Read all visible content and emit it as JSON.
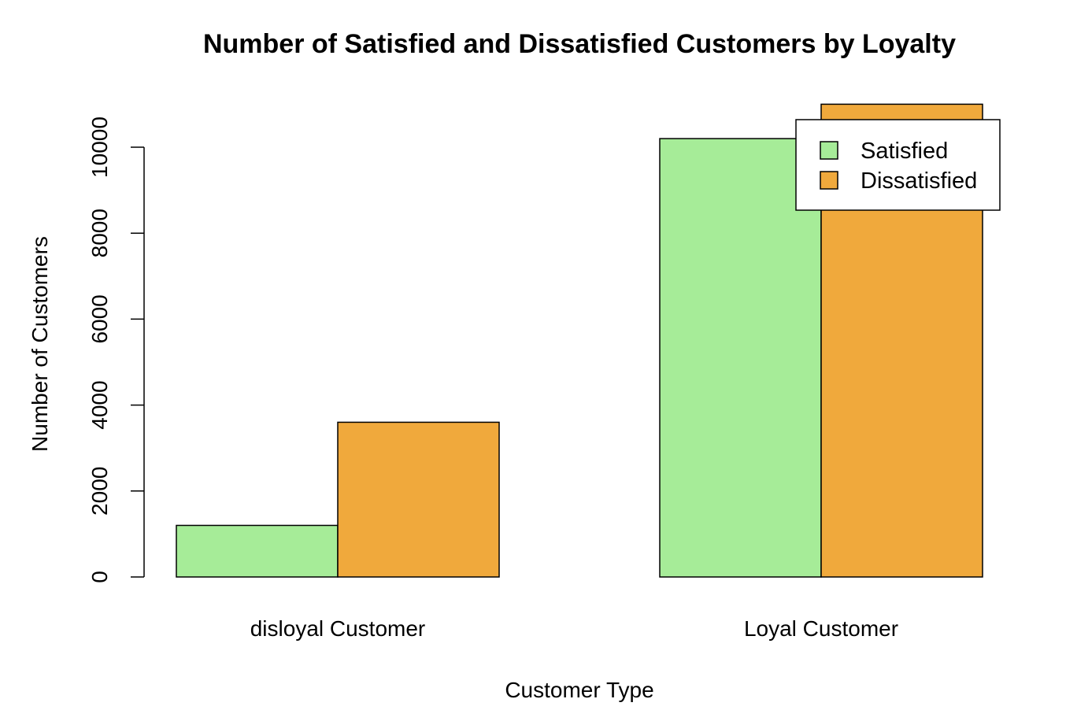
{
  "chart_data": {
    "type": "bar",
    "title": "Number of Satisfied and Dissatisfied Customers by Loyalty",
    "xlabel": "Customer Type",
    "ylabel": "Number of Customers",
    "categories": [
      "disloyal Customer",
      "Loyal Customer"
    ],
    "series": [
      {
        "name": "Satisfied",
        "color": "#A6EC98",
        "values": [
          1200,
          10200
        ]
      },
      {
        "name": "Dissatisfied",
        "color": "#F0A93C",
        "values": [
          3600,
          11000
        ]
      }
    ],
    "ylim": [
      0,
      10000
    ],
    "yticks": [
      "0",
      "2000",
      "4000",
      "6000",
      "8000",
      "10000"
    ],
    "legend_position": "top-right",
    "grid": false
  }
}
